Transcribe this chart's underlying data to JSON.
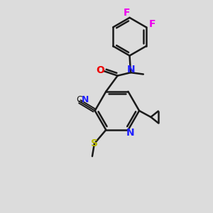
{
  "background_color": "#dcdcdc",
  "bond_color": "#1a1a1a",
  "atom_colors": {
    "N": "#2020ff",
    "O": "#ee0000",
    "F_top": "#ee00ee",
    "F_right": "#ee00ee",
    "S": "#b8b800",
    "C": "#1a1a1a"
  },
  "lw": 1.8,
  "lw_thin": 1.4,
  "font_size": 10
}
